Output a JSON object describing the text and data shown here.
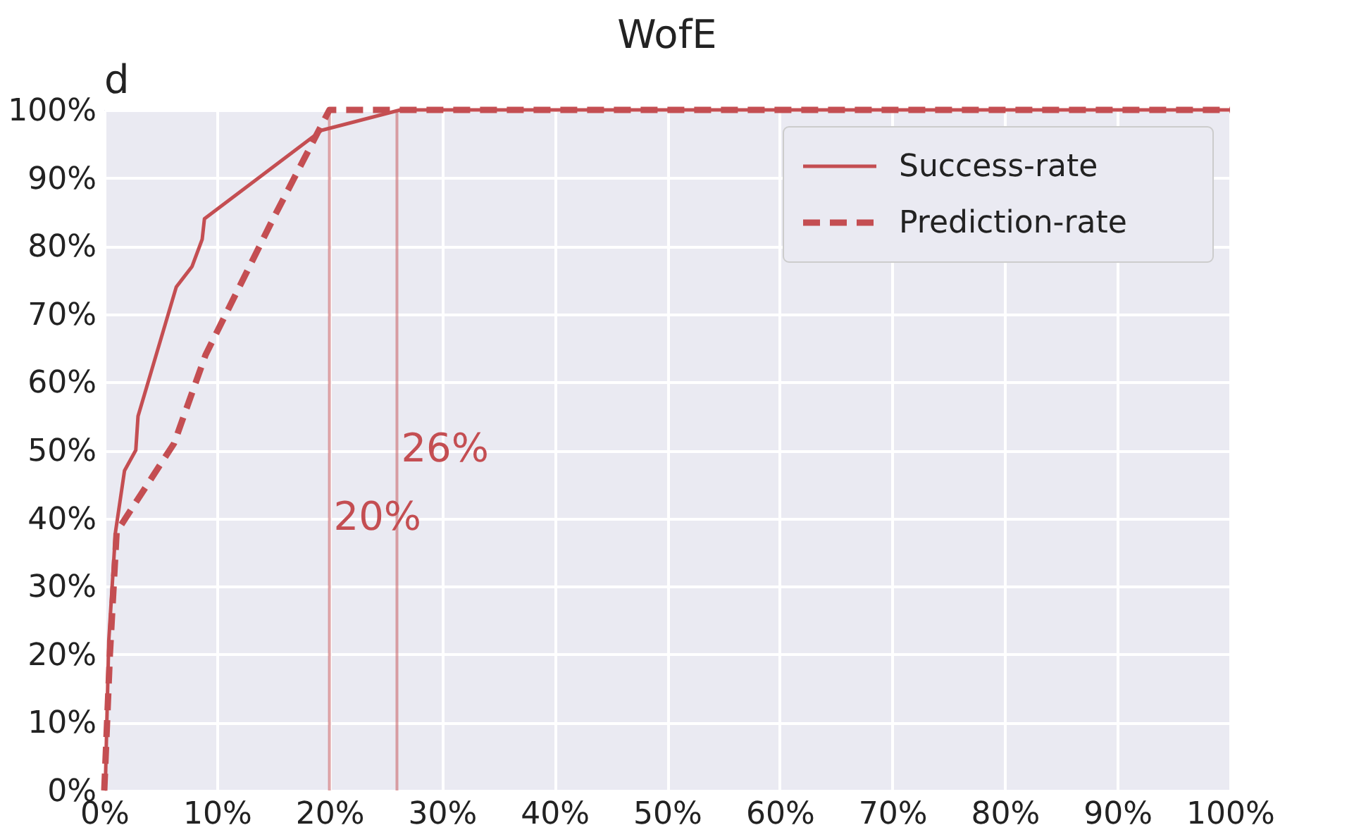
{
  "chart_data": {
    "type": "line",
    "title": "WofE",
    "annotations": [
      "d"
    ],
    "series": [
      {
        "name": "Success-rate",
        "color": "#c44e52",
        "line_style": "solid",
        "x": [
          0,
          0.1,
          0.4,
          1,
          1.8,
          2.8,
          3,
          6.4,
          7.8,
          8.7,
          8.9,
          19.3,
          26.3,
          100
        ],
        "values": [
          0,
          1,
          22,
          38,
          47,
          50,
          55,
          74,
          77,
          81,
          84,
          97,
          100,
          100
        ]
      },
      {
        "name": "Prediction-rate",
        "color": "#c44e52",
        "line_style": "dashed",
        "x": [
          0,
          0.5,
          1.1,
          6.2,
          9,
          15,
          20,
          100
        ],
        "values": [
          0,
          20,
          38,
          51,
          64,
          84,
          100,
          100
        ]
      }
    ],
    "xlim": [
      0,
      100
    ],
    "ylim": [
      0,
      100
    ],
    "xticks": [
      {
        "value": 0,
        "label": "0%"
      },
      {
        "value": 10,
        "label": "10%"
      },
      {
        "value": 20,
        "label": "20%"
      },
      {
        "value": 30,
        "label": "30%"
      },
      {
        "value": 40,
        "label": "40%"
      },
      {
        "value": 50,
        "label": "50%"
      },
      {
        "value": 60,
        "label": "60%"
      },
      {
        "value": 70,
        "label": "70%"
      },
      {
        "value": 80,
        "label": "80%"
      },
      {
        "value": 90,
        "label": "90%"
      },
      {
        "value": 100,
        "label": "100%"
      }
    ],
    "yticks": [
      {
        "value": 0,
        "label": "0%"
      },
      {
        "value": 10,
        "label": "10%"
      },
      {
        "value": 20,
        "label": "20%"
      },
      {
        "value": 30,
        "label": "30%"
      },
      {
        "value": 40,
        "label": "40%"
      },
      {
        "value": 50,
        "label": "50%"
      },
      {
        "value": 60,
        "label": "60%"
      },
      {
        "value": 70,
        "label": "70%"
      },
      {
        "value": 80,
        "label": "80%"
      },
      {
        "value": 90,
        "label": "90%"
      },
      {
        "value": 100,
        "label": "100%"
      }
    ],
    "ref_lines": [
      {
        "axis": "x",
        "value": 20,
        "label": "20%",
        "color": "#c44e52"
      },
      {
        "axis": "x",
        "value": 26,
        "label": "26%",
        "color": "#c44e52"
      }
    ],
    "grid": true,
    "legend": "top right"
  }
}
